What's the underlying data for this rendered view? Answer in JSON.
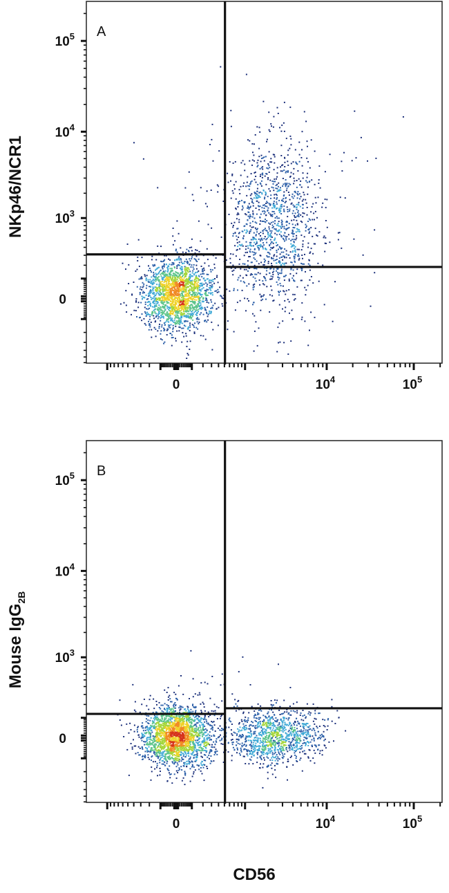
{
  "chart_data": [
    {
      "type": "scatter",
      "panel_label": "A",
      "xlabel": "",
      "ylabel": "NKp46/NCR1",
      "x_scale": "biexponential",
      "y_scale": "biexponential",
      "xlim": [
        -2000,
        210000
      ],
      "ylim": [
        -600,
        270000
      ],
      "x_ticks": [
        {
          "base": "0",
          "exp": "",
          "value": 0
        },
        {
          "base": "10",
          "exp": "4",
          "value": 10000
        },
        {
          "base": "10",
          "exp": "5",
          "value": 100000
        }
      ],
      "y_ticks": [
        {
          "base": "0",
          "exp": "",
          "value": 0
        },
        {
          "base": "10",
          "exp": "3",
          "value": 1000
        },
        {
          "base": "10",
          "exp": "4",
          "value": 10000
        },
        {
          "base": "10",
          "exp": "5",
          "value": 100000
        }
      ],
      "quadrant_gate": {
        "x": 510,
        "y_left": 310,
        "y_right": 185
      },
      "populations": [
        {
          "center_x": 0,
          "center_y": 20,
          "spread_x_decades": 0.2,
          "spread_y_decades": 0.2,
          "relative_size": 2000
        },
        {
          "center_x": 2300,
          "center_y": 740,
          "spread_x_decades": 0.25,
          "spread_y_decades": 0.45,
          "relative_size": 1100
        },
        {
          "center_x": 2000,
          "center_y": 1500,
          "spread_x_decades": 0.6,
          "spread_y_decades": 0.55,
          "relative_size": 160
        }
      ],
      "grid": false,
      "color_scale": "density (blue-cyan-green-yellow-red)"
    },
    {
      "type": "scatter",
      "panel_label": "B",
      "xlabel": "CD56",
      "ylabel": "Mouse IgG",
      "ylabel_subscript": "2B",
      "x_scale": "biexponential",
      "y_scale": "biexponential",
      "xlim": [
        -2000,
        210000
      ],
      "ylim": [
        -600,
        270000
      ],
      "x_ticks": [
        {
          "base": "0",
          "exp": "",
          "value": 0
        },
        {
          "base": "10",
          "exp": "4",
          "value": 10000
        },
        {
          "base": "10",
          "exp": "5",
          "value": 100000
        }
      ],
      "y_ticks": [
        {
          "base": "0",
          "exp": "",
          "value": 0
        },
        {
          "base": "10",
          "exp": "3",
          "value": 1000
        },
        {
          "base": "10",
          "exp": "4",
          "value": 10000
        },
        {
          "base": "10",
          "exp": "5",
          "value": 100000
        }
      ],
      "quadrant_gate": {
        "x": 510,
        "y_left": 126,
        "y_right": 168
      },
      "populations": [
        {
          "center_x": 0,
          "center_y": 10,
          "spread_x_decades": 0.2,
          "spread_y_decades": 0.17,
          "relative_size": 2200
        },
        {
          "center_x": 2500,
          "center_y": 10,
          "spread_x_decades": 0.27,
          "spread_y_decades": 0.15,
          "relative_size": 1100
        },
        {
          "center_x": 600,
          "center_y": 300,
          "spread_x_decades": 0.5,
          "spread_y_decades": 0.3,
          "relative_size": 40
        }
      ],
      "grid": false,
      "color_scale": "density (blue-cyan-green-yellow-red)"
    }
  ],
  "colors": {
    "density": [
      "#1b2f7a",
      "#2c5fa8",
      "#3fa9d6",
      "#5cc48a",
      "#a6d63a",
      "#f0d22a",
      "#f08a24",
      "#d6341c"
    ],
    "gate": "#111111",
    "frame": "#222222"
  }
}
